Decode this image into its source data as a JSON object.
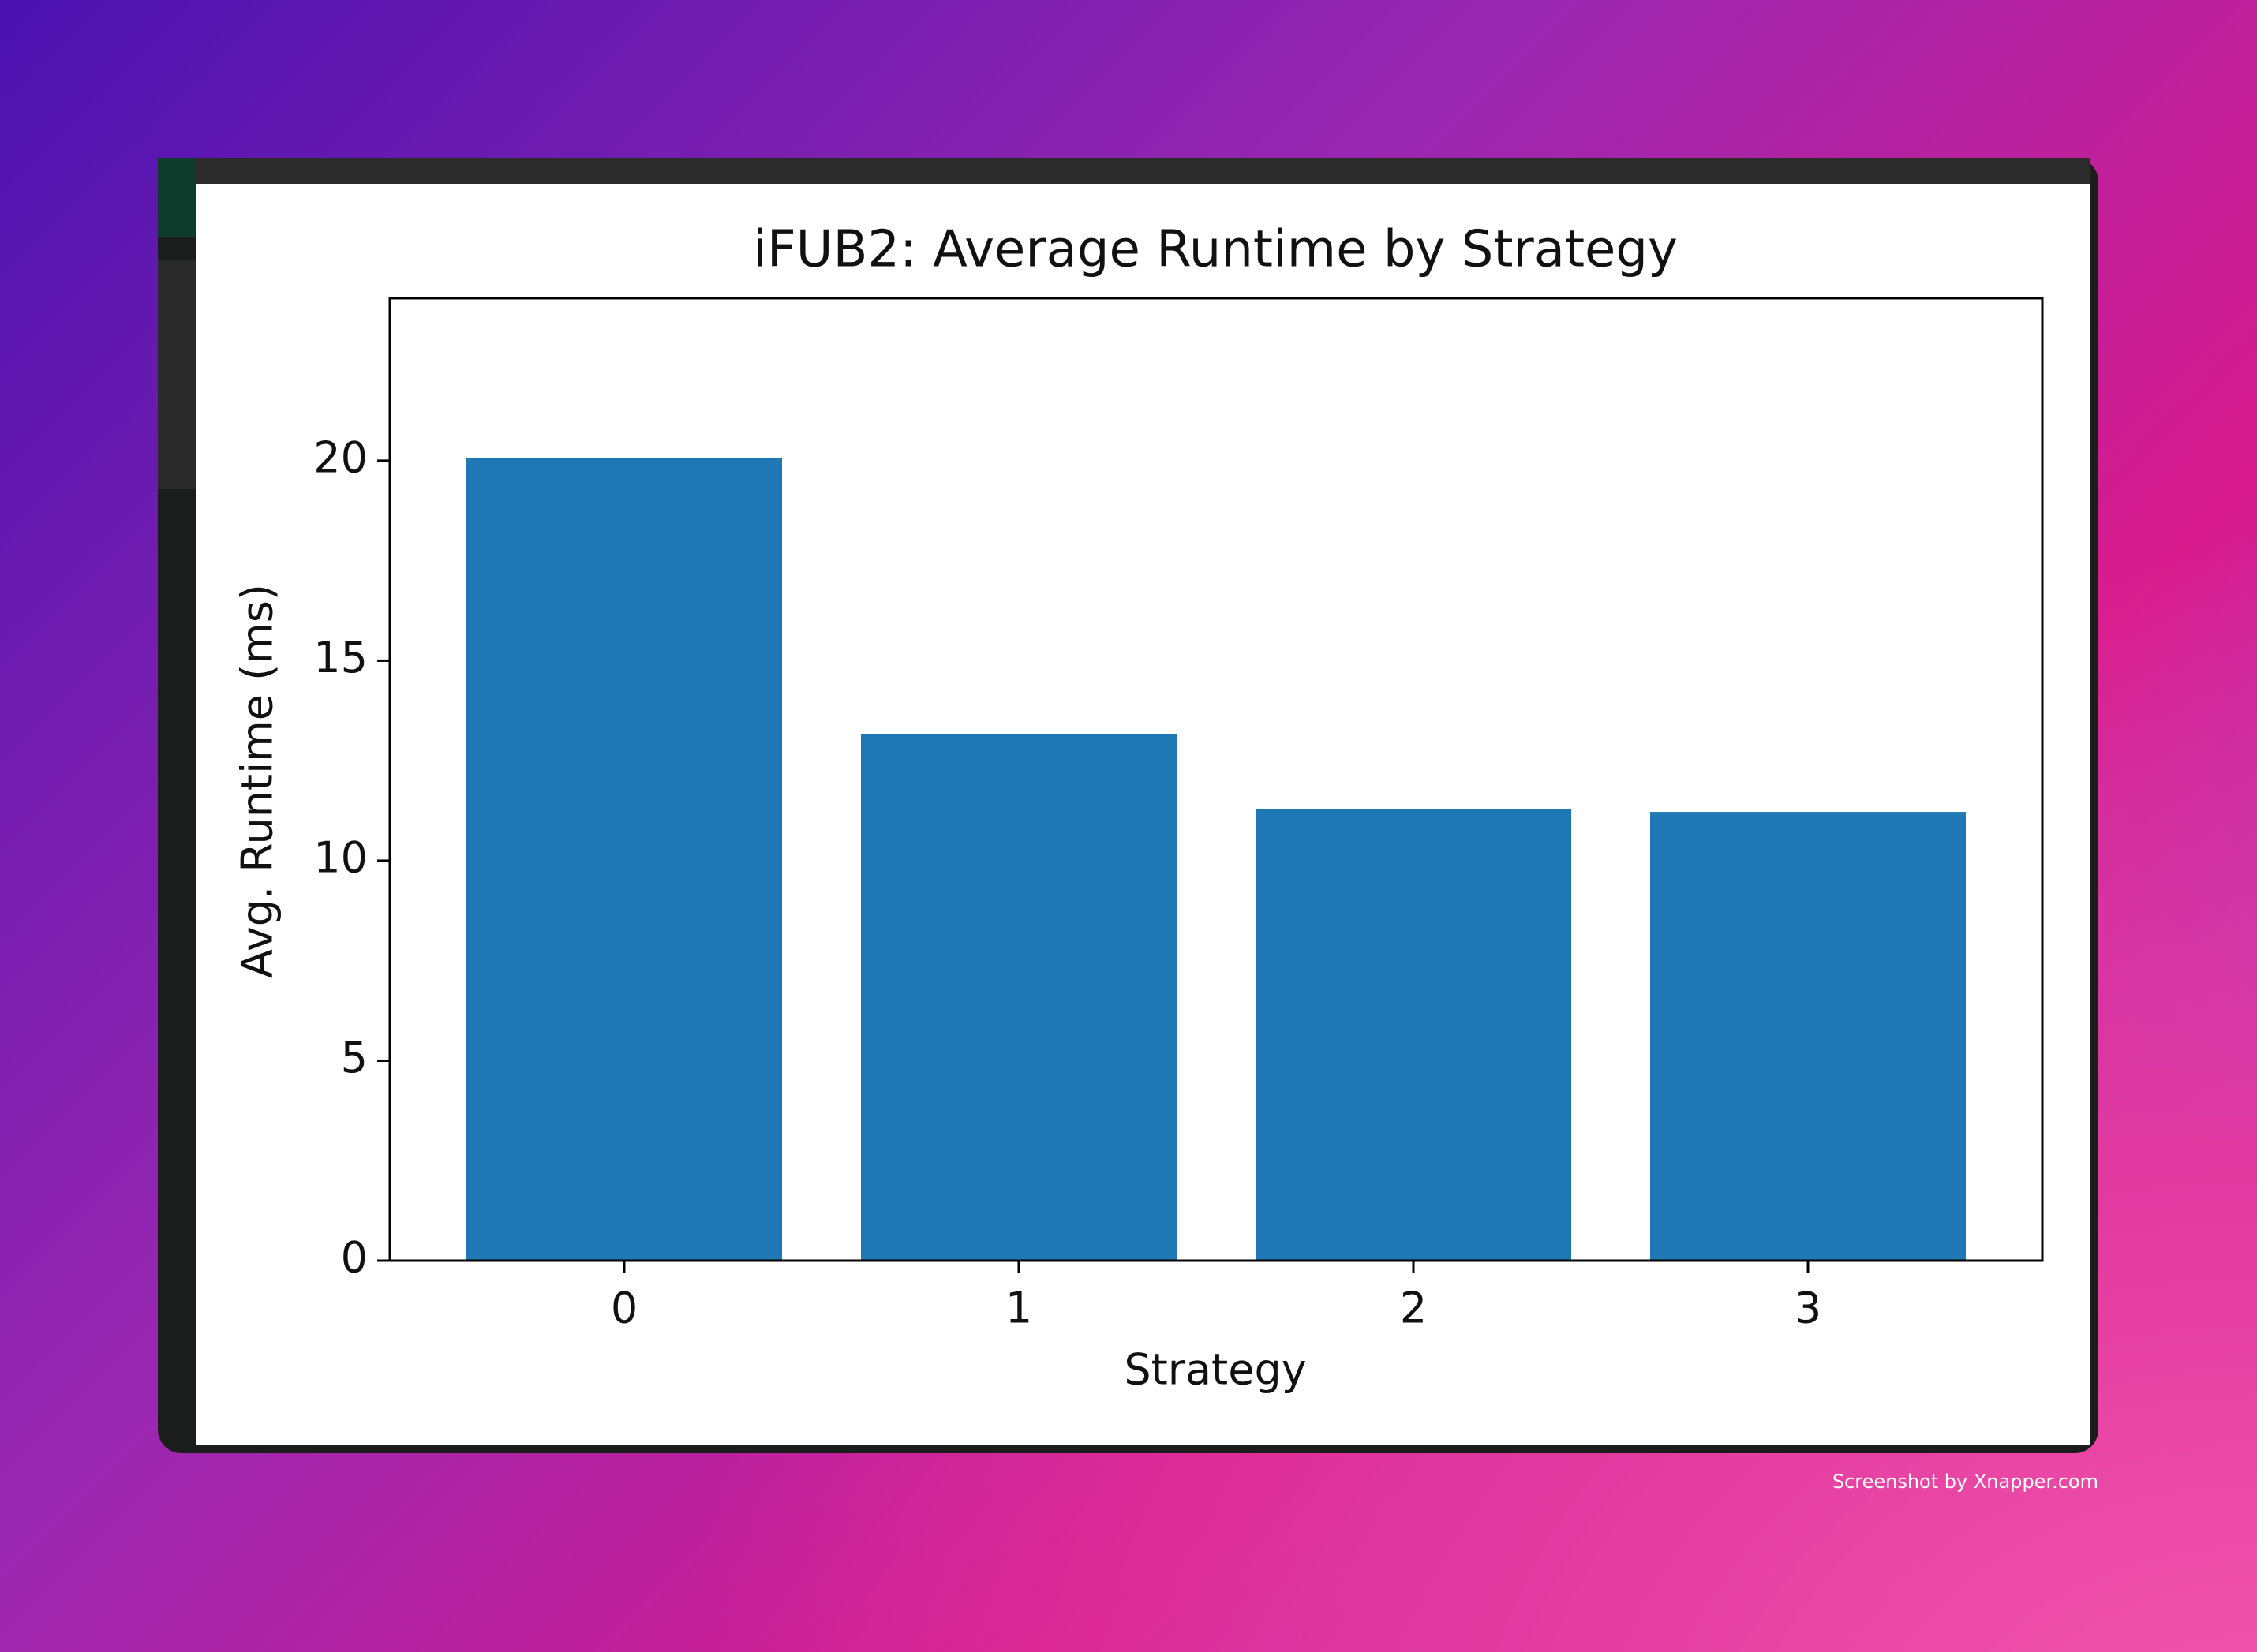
{
  "chart_data": {
    "type": "bar",
    "title": "iFUB2: Average Runtime by Strategy",
    "x_label": "Strategy",
    "y_label": "Avg. Runtime (ms)",
    "categories": [
      "0",
      "1",
      "2",
      "3"
    ],
    "values": [
      20.07,
      13.17,
      11.29,
      11.22
    ],
    "color": "#1f77b4",
    "ylim": [
      0,
      24.06
    ],
    "yticks": [
      0,
      5,
      10,
      15,
      20
    ],
    "grid": false
  },
  "watermark": "Screenshot by Xnapper.com"
}
